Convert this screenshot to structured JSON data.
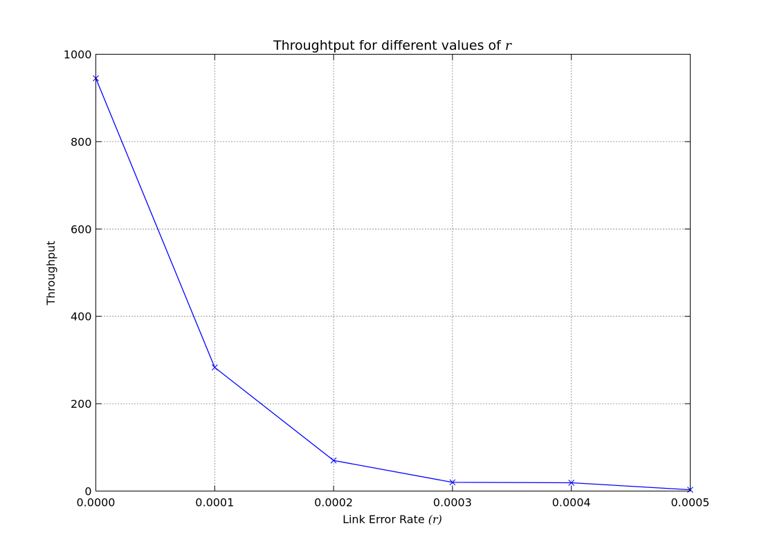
{
  "chart_data": {
    "type": "line",
    "title_text": "Throughtput for different values of ",
    "title_math": "r",
    "xlabel_text": "Link Error Rate ",
    "xlabel_math": "(r)",
    "ylabel": "Throughput",
    "xlim": [
      0,
      0.0005
    ],
    "ylim": [
      0,
      1000
    ],
    "x_ticks": [
      0,
      0.0001,
      0.0002,
      0.0003,
      0.0004,
      0.0005
    ],
    "x_tick_labels": [
      "0.0000",
      "0.0001",
      "0.0002",
      "0.0003",
      "0.0004",
      "0.0005"
    ],
    "y_ticks": [
      0,
      200,
      400,
      600,
      800,
      1000
    ],
    "y_tick_labels": [
      "0",
      "200",
      "400",
      "600",
      "800",
      "1000"
    ],
    "grid": true,
    "series": [
      {
        "color": "#0000ff",
        "marker": "x",
        "x": [
          0,
          0.0001,
          0.0002,
          0.0003,
          0.0004,
          0.0005
        ],
        "y": [
          945,
          283,
          70,
          20,
          19,
          3
        ]
      }
    ]
  }
}
